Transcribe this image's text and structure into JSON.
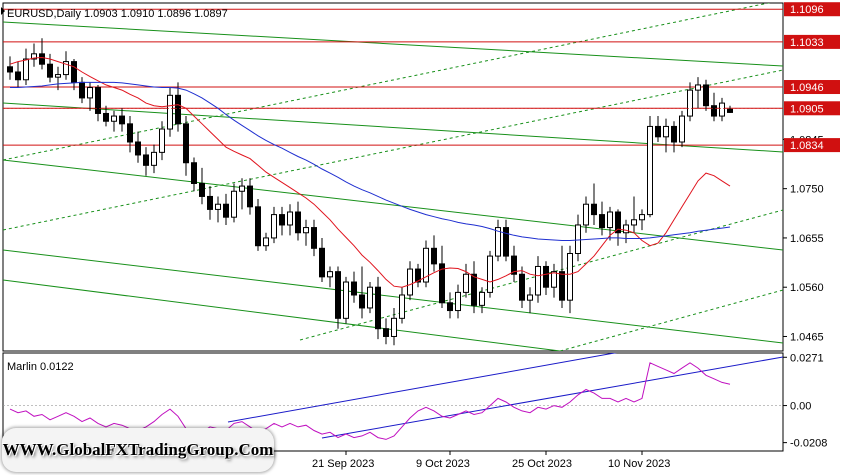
{
  "watermark_text": "WWW.GlobalFXTradingGroup.Com",
  "colors": {
    "background": "#ffffff",
    "axis": "#000000",
    "grid_frame": "#000000",
    "candle_bull": "#ffffff",
    "candle_bear": "#000000",
    "ma_fast": "#e0141e",
    "ma_slow": "#1f2fd0",
    "channel": "#18901a",
    "level": "#d01010",
    "oscillator": "#c010c0",
    "osc_channel": "#1a1ac8"
  },
  "chart_data": [
    {
      "type": "candlestick",
      "header": {
        "symbol": "EURUSD,Daily",
        "ohlc": "1.0903 1.0910 1.0896 1.0897"
      },
      "ylim": [
        1.0437,
        1.1108
      ],
      "y_ticks": [
        "1.0465",
        "1.0560",
        "1.0655",
        "1.0750",
        "1.0845"
      ],
      "x_ticks": [
        "21 Sep 2023",
        "9 Oct 2023",
        "25 Oct 2023",
        "10 Nov 2023"
      ],
      "x_tick_index": [
        42,
        55,
        67,
        79
      ],
      "level_labels": [
        {
          "label": "1.1096",
          "value": 1.1096
        },
        {
          "label": "1.1033",
          "value": 1.1033
        },
        {
          "label": "1.0946",
          "value": 1.0946
        },
        {
          "label": "1.0905",
          "value": 1.0905
        },
        {
          "label": "1.0834",
          "value": 1.0834
        }
      ],
      "current_price": 1.0905,
      "ohlc": [
        [
          1.0985,
          1.1005,
          1.096,
          1.0975
        ],
        [
          1.0975,
          1.0995,
          1.0945,
          1.096
        ],
        [
          1.096,
          1.102,
          1.095,
          1.1
        ],
        [
          1.1,
          1.103,
          1.0985,
          1.101
        ],
        [
          1.101,
          1.104,
          1.098,
          1.099
        ],
        [
          1.099,
          1.101,
          1.0955,
          1.0965
        ],
        [
          1.0965,
          1.0985,
          1.094,
          1.097
        ],
        [
          1.097,
          1.1015,
          1.096,
          1.0995
        ],
        [
          1.0995,
          1.1,
          1.094,
          1.0955
        ],
        [
          1.0955,
          1.0965,
          1.0915,
          1.0925
        ],
        [
          1.0925,
          1.0955,
          1.09,
          1.0945
        ],
        [
          1.0945,
          1.095,
          1.088,
          1.0895
        ],
        [
          1.0895,
          1.091,
          1.087,
          1.088
        ],
        [
          1.088,
          1.09,
          1.086,
          1.089
        ],
        [
          1.089,
          1.0905,
          1.086,
          1.0875
        ],
        [
          1.0875,
          1.089,
          1.082,
          1.084
        ],
        [
          1.084,
          1.086,
          1.08,
          1.0815
        ],
        [
          1.0815,
          1.083,
          1.0775,
          1.0795
        ],
        [
          1.0795,
          1.0835,
          1.078,
          1.082
        ],
        [
          1.082,
          1.088,
          1.0805,
          1.0865
        ],
        [
          1.0865,
          1.0945,
          1.085,
          1.093
        ],
        [
          1.093,
          1.0955,
          1.086,
          1.0875
        ],
        [
          1.0875,
          1.089,
          1.0775,
          1.08
        ],
        [
          1.08,
          1.081,
          1.0745,
          1.076
        ],
        [
          1.076,
          1.079,
          1.072,
          1.0735
        ],
        [
          1.0735,
          1.0755,
          1.069,
          1.071
        ],
        [
          1.071,
          1.0735,
          1.0685,
          1.072
        ],
        [
          1.072,
          1.074,
          1.068,
          1.0695
        ],
        [
          1.0695,
          1.076,
          1.0685,
          1.0745
        ],
        [
          1.0745,
          1.077,
          1.071,
          1.0755
        ],
        [
          1.0755,
          1.077,
          1.07,
          1.0715
        ],
        [
          1.0715,
          1.073,
          1.063,
          1.064
        ],
        [
          1.064,
          1.0665,
          1.063,
          1.0655
        ],
        [
          1.0655,
          1.0715,
          1.0645,
          1.07
        ],
        [
          1.07,
          1.0715,
          1.066,
          1.068
        ],
        [
          1.068,
          1.072,
          1.066,
          1.0705
        ],
        [
          1.0705,
          1.0725,
          1.065,
          1.0665
        ],
        [
          1.0665,
          1.069,
          1.064,
          1.0675
        ],
        [
          1.0675,
          1.069,
          1.062,
          1.0635
        ],
        [
          1.0635,
          1.0655,
          1.057,
          1.058
        ],
        [
          1.058,
          1.06,
          1.056,
          1.059
        ],
        [
          1.059,
          1.06,
          1.048,
          1.05
        ],
        [
          1.05,
          1.058,
          1.049,
          1.057
        ],
        [
          1.057,
          1.059,
          1.053,
          1.0545
        ],
        [
          1.0545,
          1.06,
          1.05,
          1.052
        ],
        [
          1.052,
          1.057,
          1.051,
          1.056
        ],
        [
          1.056,
          1.058,
          1.046,
          1.048
        ],
        [
          1.048,
          1.05,
          1.045,
          1.0465
        ],
        [
          1.0465,
          1.052,
          1.0448,
          1.05
        ],
        [
          1.05,
          1.056,
          1.049,
          1.0545
        ],
        [
          1.0545,
          1.061,
          1.0535,
          1.0595
        ],
        [
          1.0595,
          1.0605,
          1.056,
          1.057
        ],
        [
          1.057,
          1.065,
          1.056,
          1.0635
        ],
        [
          1.0635,
          1.066,
          1.059,
          1.0605
        ],
        [
          1.0605,
          1.064,
          1.052,
          1.053
        ],
        [
          1.053,
          1.055,
          1.05,
          1.0515
        ],
        [
          1.0515,
          1.0565,
          1.05,
          1.055
        ],
        [
          1.055,
          1.0605,
          1.054,
          1.0585
        ],
        [
          1.0585,
          1.061,
          1.051,
          1.0525
        ],
        [
          1.0525,
          1.056,
          1.051,
          1.055
        ],
        [
          1.055,
          1.063,
          1.054,
          1.062
        ],
        [
          1.062,
          1.069,
          1.061,
          1.0675
        ],
        [
          1.0675,
          1.069,
          1.061,
          1.062
        ],
        [
          1.062,
          1.064,
          1.057,
          1.0585
        ],
        [
          1.0585,
          1.06,
          1.052,
          1.0535
        ],
        [
          1.0535,
          1.056,
          1.051,
          1.0545
        ],
        [
          1.0545,
          1.062,
          1.053,
          1.06
        ],
        [
          1.06,
          1.061,
          1.0545,
          1.056
        ],
        [
          1.056,
          1.0605,
          1.054,
          1.059
        ],
        [
          1.059,
          1.064,
          1.052,
          1.0535
        ],
        [
          1.0535,
          1.064,
          1.051,
          1.0625
        ],
        [
          1.0625,
          1.07,
          1.061,
          1.068
        ],
        [
          1.068,
          1.0735,
          1.0665,
          1.072
        ],
        [
          1.072,
          1.076,
          1.068,
          1.07
        ],
        [
          1.07,
          1.0725,
          1.066,
          1.0675
        ],
        [
          1.0675,
          1.0715,
          1.065,
          1.0705
        ],
        [
          1.0705,
          1.071,
          1.064,
          1.0665
        ],
        [
          1.0665,
          1.069,
          1.0645,
          1.068
        ],
        [
          1.068,
          1.0735,
          1.0665,
          1.069
        ],
        [
          1.069,
          1.071,
          1.067,
          1.07
        ],
        [
          1.07,
          1.089,
          1.0695,
          1.087
        ],
        [
          1.087,
          1.089,
          1.084,
          1.085
        ],
        [
          1.085,
          1.0885,
          1.082,
          1.087
        ],
        [
          1.087,
          1.088,
          1.082,
          1.084
        ],
        [
          1.084,
          1.09,
          1.083,
          1.089
        ],
        [
          1.089,
          1.0955,
          1.088,
          1.094
        ],
        [
          1.094,
          1.0965,
          1.0905,
          1.095
        ],
        [
          1.095,
          1.096,
          1.09,
          1.091
        ],
        [
          1.091,
          1.0935,
          1.088,
          1.089
        ],
        [
          1.089,
          1.0925,
          1.088,
          1.0915
        ],
        [
          1.0903,
          1.091,
          1.0896,
          1.0897
        ]
      ],
      "series": [
        {
          "name": "",
          "kind": "ma_fast",
          "values": [
            1.099,
            1.0995,
            1.0998,
            1.1002,
            1.1003,
            1.1,
            1.0995,
            1.099,
            1.0985,
            1.0975,
            1.0966,
            1.0958,
            1.095,
            1.0945,
            1.094,
            1.0932,
            1.0925,
            1.0915,
            1.091,
            1.0908,
            1.091,
            1.0912,
            1.0905,
            1.089,
            1.0875,
            1.086,
            1.0845,
            1.083,
            1.0822,
            1.0815,
            1.0808,
            1.0795,
            1.0782,
            1.0772,
            1.0762,
            1.0752,
            1.0742,
            1.0732,
            1.072,
            1.0705,
            1.069,
            1.0672,
            1.0656,
            1.064,
            1.0622,
            1.0608,
            1.0592,
            1.0575,
            1.0562,
            1.056,
            1.0565,
            1.0572,
            1.058,
            1.0588,
            1.0595,
            1.0597,
            1.0596,
            1.059,
            1.058,
            1.0575,
            1.057,
            1.0575,
            1.0582,
            1.059,
            1.0592,
            1.0585,
            1.0582,
            1.0585,
            1.0588,
            1.0585,
            1.0585,
            1.059,
            1.0605,
            1.062,
            1.064,
            1.066,
            1.0672,
            1.067,
            1.0665,
            1.065,
            1.064,
            1.0645,
            1.0665,
            1.069,
            1.0715,
            1.074,
            1.0765,
            1.078,
            1.0775,
            1.0765,
            1.0755
          ]
        },
        {
          "name": "",
          "kind": "ma_slow",
          "values": [
            1.0945,
            1.0945,
            1.0946,
            1.0947,
            1.0948,
            1.095,
            1.0952,
            1.0953,
            1.0954,
            1.0955,
            1.0955,
            1.0955,
            1.0955,
            1.0955,
            1.0954,
            1.0952,
            1.095,
            1.0948,
            1.0946,
            1.0945,
            1.0945,
            1.0944,
            1.094,
            1.0933,
            1.0925,
            1.0915,
            1.0905,
            1.0893,
            1.0882,
            1.0872,
            1.0862,
            1.0852,
            1.0843,
            1.0835,
            1.0828,
            1.082,
            1.0812,
            1.0805,
            1.0797,
            1.0788,
            1.078,
            1.0772,
            1.0763,
            1.0755,
            1.0748,
            1.0742,
            1.0735,
            1.0728,
            1.0722,
            1.0716,
            1.071,
            1.0705,
            1.07,
            1.0696,
            1.0692,
            1.0689,
            1.0685,
            1.0682,
            1.068,
            1.0677,
            1.0673,
            1.0668,
            1.0664,
            1.066,
            1.0657,
            1.0655,
            1.0653,
            1.0652,
            1.0651,
            1.065,
            1.065,
            1.0651,
            1.0652,
            1.0653,
            1.0654,
            1.0655,
            1.0655,
            1.0654,
            1.0654,
            1.0654,
            1.0655,
            1.0657,
            1.0659,
            1.0661,
            1.0663,
            1.0665,
            1.0668,
            1.067,
            1.0672,
            1.0674,
            1.0676
          ]
        }
      ]
    },
    {
      "type": "line",
      "header": "Marlin 0.0122",
      "ylim": [
        -0.0255,
        0.0295
      ],
      "y_ticks": [
        "0.0271",
        "0.00",
        "-0.0208"
      ],
      "series": [
        {
          "name": "Marlin",
          "values": [
            -0.002,
            -0.004,
            -0.003,
            -0.006,
            -0.005,
            -0.008,
            -0.006,
            -0.004,
            -0.006,
            -0.009,
            -0.007,
            -0.01,
            -0.012,
            -0.01,
            -0.011,
            -0.013,
            -0.014,
            -0.012,
            -0.009,
            -0.005,
            -0.002,
            -0.006,
            -0.013,
            -0.016,
            -0.015,
            -0.012,
            -0.013,
            -0.014,
            -0.01,
            -0.009,
            -0.012,
            -0.015,
            -0.013,
            -0.01,
            -0.012,
            -0.01,
            -0.012,
            -0.011,
            -0.014,
            -0.016,
            -0.015,
            -0.018,
            -0.016,
            -0.018,
            -0.017,
            -0.015,
            -0.018,
            -0.019,
            -0.017,
            -0.012,
            -0.007,
            -0.003,
            -0.001,
            -0.003,
            -0.006,
            -0.007,
            -0.005,
            -0.003,
            -0.005,
            -0.004,
            0.0,
            0.004,
            0.002,
            -0.001,
            -0.003,
            -0.004,
            -0.001,
            -0.002,
            0.0,
            -0.001,
            0.002,
            0.006,
            0.009,
            0.007,
            0.004,
            0.004,
            0.002,
            0.004,
            0.002,
            0.004,
            0.024,
            0.022,
            0.02,
            0.018,
            0.021,
            0.024,
            0.021,
            0.017,
            0.015,
            0.013,
            0.012
          ]
        }
      ]
    }
  ]
}
